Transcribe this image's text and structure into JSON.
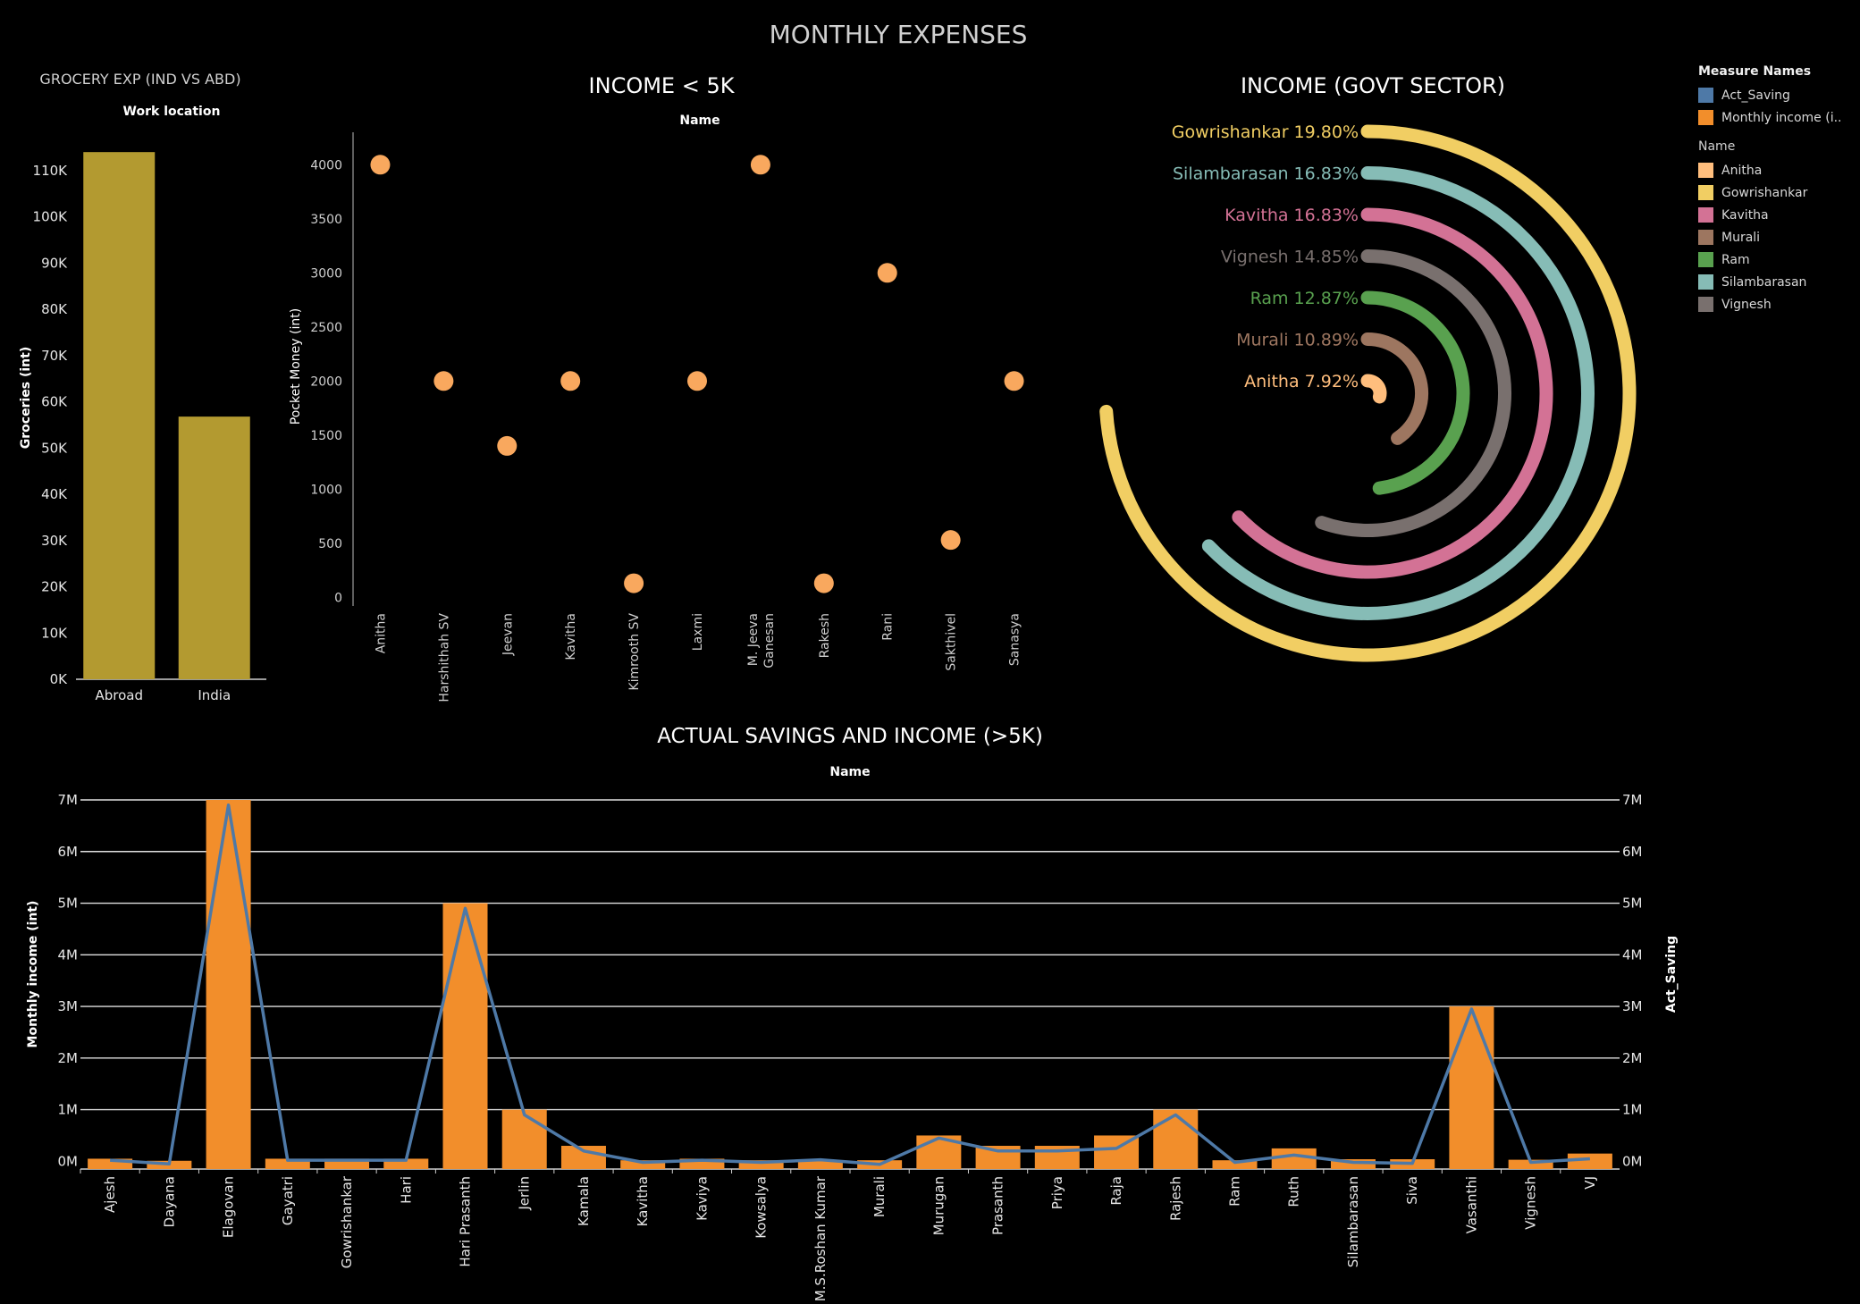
{
  "dashboard_title": "MONTHLY EXPENSES",
  "legend": {
    "measure_header": "Measure Names",
    "measures": [
      {
        "label": "Act_Saving",
        "color": "#4e79a7"
      },
      {
        "label": "Monthly income (i..",
        "color": "#f28e2b"
      }
    ],
    "name_header": "Name",
    "names": [
      {
        "label": "Anitha",
        "color": "#ffbe7d"
      },
      {
        "label": "Gowrishankar",
        "color": "#f1ce63"
      },
      {
        "label": "Kavitha",
        "color": "#d37295"
      },
      {
        "label": "Murali",
        "color": "#9d7660"
      },
      {
        "label": "Ram",
        "color": "#59a14f"
      },
      {
        "label": "Silambarasan",
        "color": "#86bcb6"
      },
      {
        "label": "Vignesh",
        "color": "#79706e"
      }
    ]
  },
  "chart_data": [
    {
      "type": "bar",
      "title": "GROCERY EXP (IND VS ABD)",
      "header": "Work location",
      "ylabel": "Groceries (int)",
      "categories": [
        "Abroad",
        "India"
      ],
      "values": [
        114000,
        56800
      ],
      "ylim": [
        0,
        115000
      ],
      "y_ticks": [
        0,
        10000,
        20000,
        30000,
        40000,
        50000,
        60000,
        70000,
        80000,
        90000,
        100000,
        110000
      ],
      "y_tick_labels": [
        "0K",
        "10K",
        "20K",
        "30K",
        "40K",
        "50K",
        "60K",
        "70K",
        "80K",
        "90K",
        "100K",
        "110K"
      ],
      "color": "#b39a30"
    },
    {
      "type": "scatter",
      "title": "INCOME < 5K",
      "header": "Name",
      "ylabel": "Pocket Money (int)",
      "categories": [
        "Anitha",
        "Harshithah SV",
        "Jeevan",
        "Kavitha",
        "Kimrooth SV",
        "Laxmi",
        "M. Jeeva Ganesan",
        "Rakesh",
        "Rani",
        "Sakthivel",
        "Sanasya"
      ],
      "category_lines": [
        [
          "Anitha"
        ],
        [
          "Harshithah SV"
        ],
        [
          "Jeevan"
        ],
        [
          "Kavitha"
        ],
        [
          "Kimrooth SV"
        ],
        [
          "Laxmi"
        ],
        [
          "M. Jeeva",
          "Ganesan"
        ],
        [
          "Rakesh"
        ],
        [
          "Rani"
        ],
        [
          "Sakthivel"
        ],
        [
          "Sanasya"
        ]
      ],
      "values": [
        4000,
        2000,
        1400,
        2000,
        130,
        2000,
        4000,
        130,
        3000,
        530,
        2000
      ],
      "ylim": [
        -80,
        4300
      ],
      "y_ticks": [
        0,
        500,
        1000,
        1500,
        2000,
        2500,
        3000,
        3500,
        4000
      ],
      "color": "#f9a85e"
    },
    {
      "type": "pie",
      "title": "INCOME (GOVT SECTOR)",
      "slices": [
        {
          "name": "Gowrishankar",
          "percent": 19.8,
          "label": "Gowrishankar 19.80%",
          "color": "#f1ce63"
        },
        {
          "name": "Silambarasan",
          "percent": 16.83,
          "label": "Silambarasan 16.83%",
          "color": "#86bcb6"
        },
        {
          "name": "Kavitha",
          "percent": 16.83,
          "label": "Kavitha 16.83%",
          "color": "#d37295"
        },
        {
          "name": "Vignesh",
          "percent": 14.85,
          "label": "Vignesh 14.85%",
          "color": "#79706e"
        },
        {
          "name": "Ram",
          "percent": 12.87,
          "label": "Ram 12.87%",
          "color": "#59a14f"
        },
        {
          "name": "Murali",
          "percent": 10.89,
          "label": "Murali 10.89%",
          "color": "#9d7660"
        },
        {
          "name": "Anitha",
          "percent": 7.92,
          "label": "Anitha 7.92%",
          "color": "#ffbe7d"
        }
      ]
    },
    {
      "type": "bar",
      "title": "ACTUAL SAVINGS AND INCOME (>5K)",
      "header": "Name",
      "ylabel": "Monthly income (int)",
      "y2label": "Act_Saving",
      "categories": [
        "Ajesh",
        "Dayana",
        "Elagovan",
        "Gayatri",
        "Gowrishankar",
        "Hari",
        "Hari Prasanth",
        "Jerlin",
        "Kamala",
        "Kavitha",
        "Kaviya",
        "Kowsalya",
        "M.S.Roshan Kumar",
        "Murali",
        "Murugan",
        "Prasanth",
        "Priya",
        "Raja",
        "Rajesh",
        "Ram",
        "Ruth",
        "Silambarasan",
        "Siva",
        "Vasanthi",
        "Vignesh",
        "VJ"
      ],
      "ylim": [
        -150000,
        7000000
      ],
      "y_ticks": [
        0,
        1000000,
        2000000,
        3000000,
        4000000,
        5000000,
        6000000,
        7000000
      ],
      "y_tick_labels": [
        "0M",
        "1M",
        "2M",
        "3M",
        "4M",
        "5M",
        "6M",
        "7M"
      ],
      "series": [
        {
          "name": "Monthly income (i..",
          "type": "bar",
          "color": "#f28e2b",
          "values": [
            50000,
            10000,
            7000000,
            50000,
            50000,
            50000,
            5000000,
            1000000,
            300000,
            20000,
            50000,
            20000,
            20000,
            20000,
            500000,
            300000,
            300000,
            500000,
            1000000,
            20000,
            250000,
            40000,
            40000,
            3000000,
            30000,
            150000
          ]
        },
        {
          "name": "Act_Saving",
          "type": "line",
          "color": "#4e79a7",
          "values": [
            20000,
            -50000,
            6900000,
            20000,
            20000,
            20000,
            4900000,
            900000,
            200000,
            -20000,
            20000,
            -20000,
            30000,
            -60000,
            450000,
            200000,
            200000,
            250000,
            900000,
            -20000,
            120000,
            -20000,
            -40000,
            2950000,
            -20000,
            50000
          ]
        }
      ]
    }
  ]
}
